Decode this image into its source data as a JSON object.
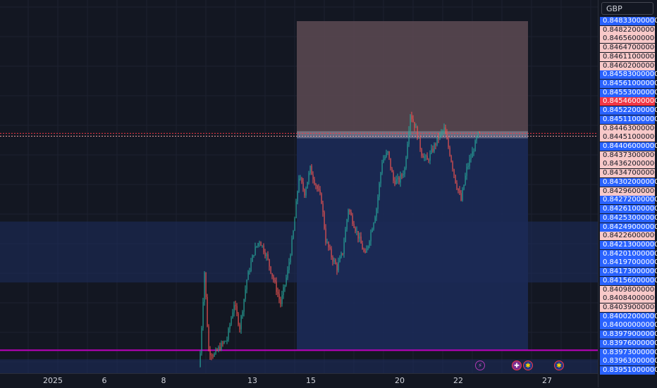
{
  "currency": "GBP",
  "chart_data": {
    "type": "candlestick",
    "x_tick_labels": [
      "2025",
      "6",
      "8",
      "13",
      "15",
      "20",
      "22",
      "27"
    ],
    "ylim": [
      0.83951,
      0.84833
    ],
    "price_labels": [
      {
        "value": "0.84833000000",
        "style": "blue"
      },
      {
        "value": "0.84822000000",
        "style": "pink"
      },
      {
        "value": "0.84656000000",
        "style": "pink"
      },
      {
        "value": "0.84647000000",
        "style": "pink"
      },
      {
        "value": "0.84611000000",
        "style": "pink"
      },
      {
        "value": "0.84602000000",
        "style": "pink"
      },
      {
        "value": "0.84583000000",
        "style": "blue"
      },
      {
        "value": "0.84561000000",
        "style": "blue"
      },
      {
        "value": "0.84553000000",
        "style": "blue"
      },
      {
        "value": "0.84546000000",
        "style": "red"
      },
      {
        "value": "0.84522000000",
        "style": "blue"
      },
      {
        "value": "0.84511000000",
        "style": "blue"
      },
      {
        "value": "0.84463000000",
        "style": "pink"
      },
      {
        "value": "0.84451000000",
        "style": "pink"
      },
      {
        "value": "0.84406000000",
        "style": "blue"
      },
      {
        "value": "0.84373000000",
        "style": "pink"
      },
      {
        "value": "0.84362000000",
        "style": "pink"
      },
      {
        "value": "0.84347000000",
        "style": "pink"
      },
      {
        "value": "0.84302000000",
        "style": "blue"
      },
      {
        "value": "0.84296000000",
        "style": "pink"
      },
      {
        "value": "0.84272000000",
        "style": "blue"
      },
      {
        "value": "0.84261000000",
        "style": "blue"
      },
      {
        "value": "0.84253000000",
        "style": "blue"
      },
      {
        "value": "0.84249000000",
        "style": "blue"
      },
      {
        "value": "0.84226000000",
        "style": "pink"
      },
      {
        "value": "0.84213000000",
        "style": "blue"
      },
      {
        "value": "0.84201000000",
        "style": "blue"
      },
      {
        "value": "0.84197000000",
        "style": "blue"
      },
      {
        "value": "0.84173000000",
        "style": "blue"
      },
      {
        "value": "0.84156000000",
        "style": "blue"
      },
      {
        "value": "0.84098000000",
        "style": "pink"
      },
      {
        "value": "0.84084000000",
        "style": "pink"
      },
      {
        "value": "0.84039000000",
        "style": "pink"
      },
      {
        "value": "0.84002000000",
        "style": "blue"
      },
      {
        "value": "0.84000000000",
        "style": "blue"
      },
      {
        "value": "0.83979000000",
        "style": "blue"
      },
      {
        "value": "0.83976000000",
        "style": "blue"
      },
      {
        "value": "0.83973000000",
        "style": "blue"
      },
      {
        "value": "0.83963000000",
        "style": "blue"
      },
      {
        "value": "0.83951000000",
        "style": "blue"
      }
    ],
    "position": {
      "entry": 0.84546,
      "stop": 0.84833,
      "target": 0.84002
    },
    "horizontal_lines": [
      {
        "value": 0.84002,
        "color": "#c000c0"
      },
      {
        "value": 0.84302,
        "color": "#2962ff"
      },
      {
        "value": 0.84226,
        "color": "#2962ff"
      }
    ],
    "colors": {
      "up": "#26a69a",
      "down": "#ef5350",
      "stop_zone": "#5d4a52",
      "target_zone": "#1c2a56",
      "background": "#131722"
    }
  }
}
